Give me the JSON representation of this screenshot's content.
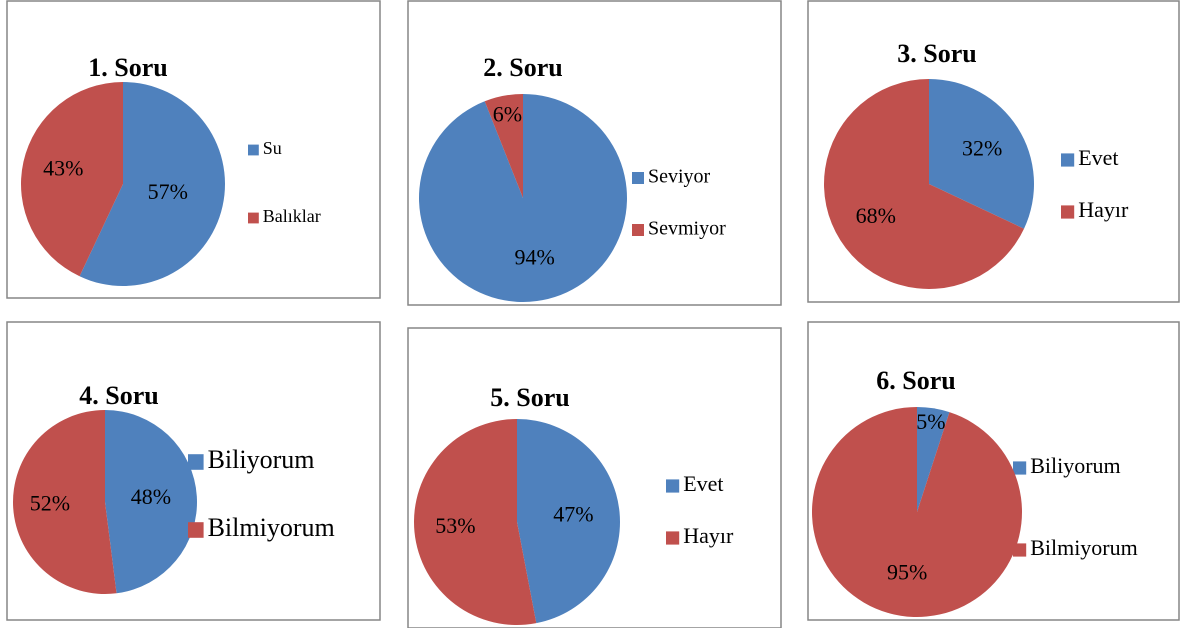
{
  "chart_data": [
    {
      "type": "pie",
      "title": "1. Soru",
      "categories": [
        "Su",
        "Balıklar"
      ],
      "values": [
        57,
        43
      ],
      "value_labels": [
        "57%",
        "43%"
      ],
      "colors": [
        "#4f81bd",
        "#c0504d"
      ]
    },
    {
      "type": "pie",
      "title": "2. Soru",
      "categories": [
        "Seviyor",
        "Sevmiyor"
      ],
      "values": [
        94,
        6
      ],
      "value_labels": [
        "94%",
        "6%"
      ],
      "colors": [
        "#4f81bd",
        "#c0504d"
      ]
    },
    {
      "type": "pie",
      "title": "3. Soru",
      "categories": [
        "Evet",
        "Hayır"
      ],
      "values": [
        32,
        68
      ],
      "value_labels": [
        "32%",
        "68%"
      ],
      "colors": [
        "#4f81bd",
        "#c0504d"
      ]
    },
    {
      "type": "pie",
      "title": "4. Soru",
      "categories": [
        "Biliyorum",
        "Bilmiyorum"
      ],
      "values": [
        48,
        52
      ],
      "value_labels": [
        "48%",
        "52%"
      ],
      "colors": [
        "#4f81bd",
        "#c0504d"
      ]
    },
    {
      "type": "pie",
      "title": "5. Soru",
      "categories": [
        "Evet",
        "Hayır"
      ],
      "values": [
        47,
        53
      ],
      "value_labels": [
        "47%",
        "53%"
      ],
      "colors": [
        "#4f81bd",
        "#c0504d"
      ]
    },
    {
      "type": "pie",
      "title": "6. Soru",
      "categories": [
        "Biliyorum",
        "Bilmiyorum"
      ],
      "values": [
        5,
        95
      ],
      "value_labels": [
        "5%",
        "95%"
      ],
      "colors": [
        "#4f81bd",
        "#c0504d"
      ]
    }
  ]
}
